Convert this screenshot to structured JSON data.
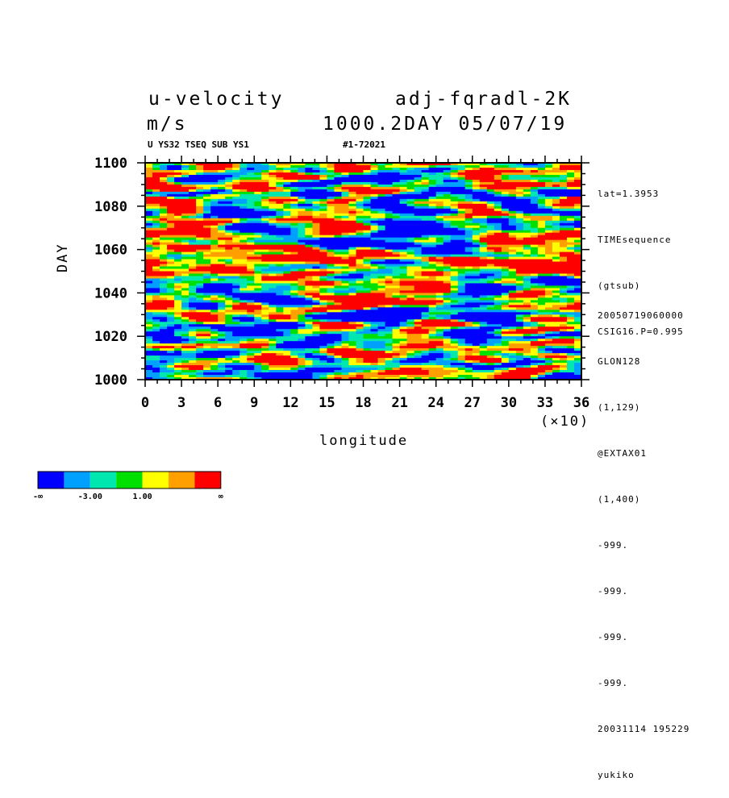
{
  "header": {
    "variable": "u-velocity",
    "experiment": "adj-fqradl-2K",
    "units": "m/s",
    "time_date": "1000.2DAY 05/07/19",
    "subtitle_left": "U YS32 TSEQ SUB YS1",
    "subtitle_right": "#1-72021"
  },
  "side_info": {
    "top": [
      "lat=1.3953",
      "TIMEsequence",
      "(gtsub)",
      "CSIG16.P=0.995"
    ],
    "bottom": [
      "20050719060000",
      "GLON128",
      "(1,129)",
      "@EXTAX01",
      "(1,400)",
      "-999.",
      "-999.",
      "-999.",
      "-999.",
      "20031114 195229",
      "yukiko"
    ]
  },
  "colors": {
    "levels": [
      "#0000ff",
      "#00a0ff",
      "#00e8b0",
      "#00e000",
      "#ffff00",
      "#ffa000",
      "#ff0000"
    ]
  },
  "colorbar": {
    "labels": [
      "-∞",
      "-3.00",
      "1.00",
      "∞"
    ]
  },
  "chart_data": {
    "type": "heatmap",
    "title": "u-velocity",
    "xlabel": "longitude",
    "xscale_note": "(×10)",
    "ylabel": "DAY",
    "xlim": [
      0,
      36
    ],
    "ylim": [
      1000,
      1100
    ],
    "x_ticks": [
      "0",
      "3",
      "6",
      "9",
      "12",
      "15",
      "18",
      "21",
      "24",
      "27",
      "30",
      "33",
      "36"
    ],
    "y_ticks": [
      "1000",
      "1020",
      "1040",
      "1060",
      "1080",
      "1100"
    ],
    "color_levels": [
      "< -3.00",
      "-3.00 to 1.00 (lower)",
      "...",
      "> 1.00"
    ],
    "note": "Hovmöller diagram of zonal velocity; fine-grained noisy pattern of blue (negative) and red (positive) streaks."
  }
}
